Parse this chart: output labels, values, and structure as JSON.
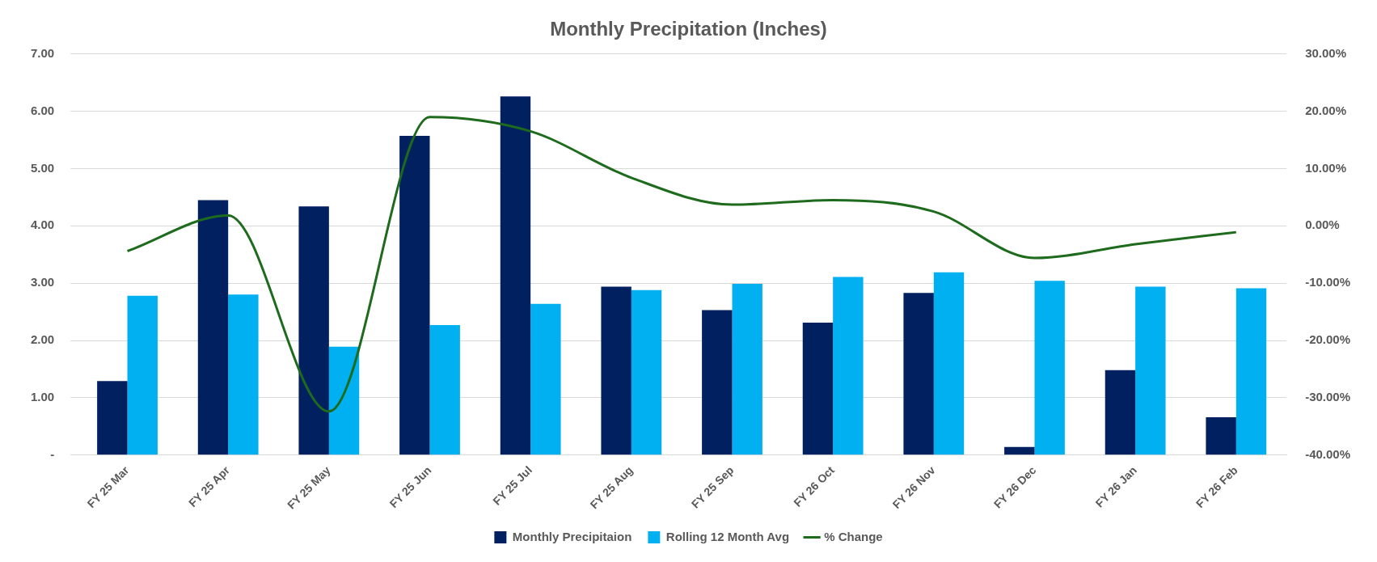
{
  "chart_data": {
    "type": "bar",
    "title": "Monthly Precipitation (Inches)",
    "categories": [
      "FY 25 Mar",
      "FY 25 Apr",
      "FY 25 May",
      "FY 25 Jun",
      "FY 25 Jul",
      "FY 25 Aug",
      "FY 25 Sep",
      "FY 26 Oct",
      "FY 26 Nov",
      "FY 26 Dec",
      "FY 26 Jan",
      "FY 26 Feb"
    ],
    "series": [
      {
        "name": "Monthly Precipitaion",
        "color": "#002060",
        "values": [
          1.29,
          4.45,
          4.34,
          5.57,
          6.26,
          2.94,
          2.53,
          2.31,
          2.83,
          0.14,
          1.48,
          0.66
        ]
      },
      {
        "name": "Rolling 12 Month Avg",
        "color": "#00b0f0",
        "values": [
          2.78,
          2.8,
          1.89,
          2.27,
          2.64,
          2.88,
          2.99,
          3.11,
          3.19,
          3.04,
          2.94,
          2.91
        ]
      },
      {
        "name": "% Change",
        "type": "line",
        "axis": "y2",
        "color": "#1e6b1e",
        "marker": "none",
        "values": [
          -4.4,
          1.8,
          -32.4,
          19,
          16.5,
          8.4,
          3.7,
          4.5,
          2.5,
          -5.6,
          -3.2,
          -1.1
        ]
      }
    ],
    "ylim": [
      0,
      7
    ],
    "yticks": [
      {
        "value": 0,
        "label": "-"
      },
      {
        "value": 1,
        "label": "1.00"
      },
      {
        "value": 2,
        "label": "2.00"
      },
      {
        "value": 3,
        "label": "3.00"
      },
      {
        "value": 4,
        "label": "4.00"
      },
      {
        "value": 5,
        "label": "5.00"
      },
      {
        "value": 6,
        "label": "6.00"
      },
      {
        "value": 7,
        "label": "7.00"
      }
    ],
    "y2lim": [
      -40,
      30
    ],
    "y2ticks": [
      {
        "value": -40,
        "label": "-40.00%"
      },
      {
        "value": -30,
        "label": "-30.00%"
      },
      {
        "value": -20,
        "label": "-20.00%"
      },
      {
        "value": -10,
        "label": "-10.00%"
      },
      {
        "value": 0,
        "label": "0.00%"
      },
      {
        "value": 10,
        "label": "10.00%"
      },
      {
        "value": 20,
        "label": "20.00%"
      },
      {
        "value": 30,
        "label": "30.00%"
      }
    ],
    "grid": "y",
    "legend": "bottom"
  }
}
